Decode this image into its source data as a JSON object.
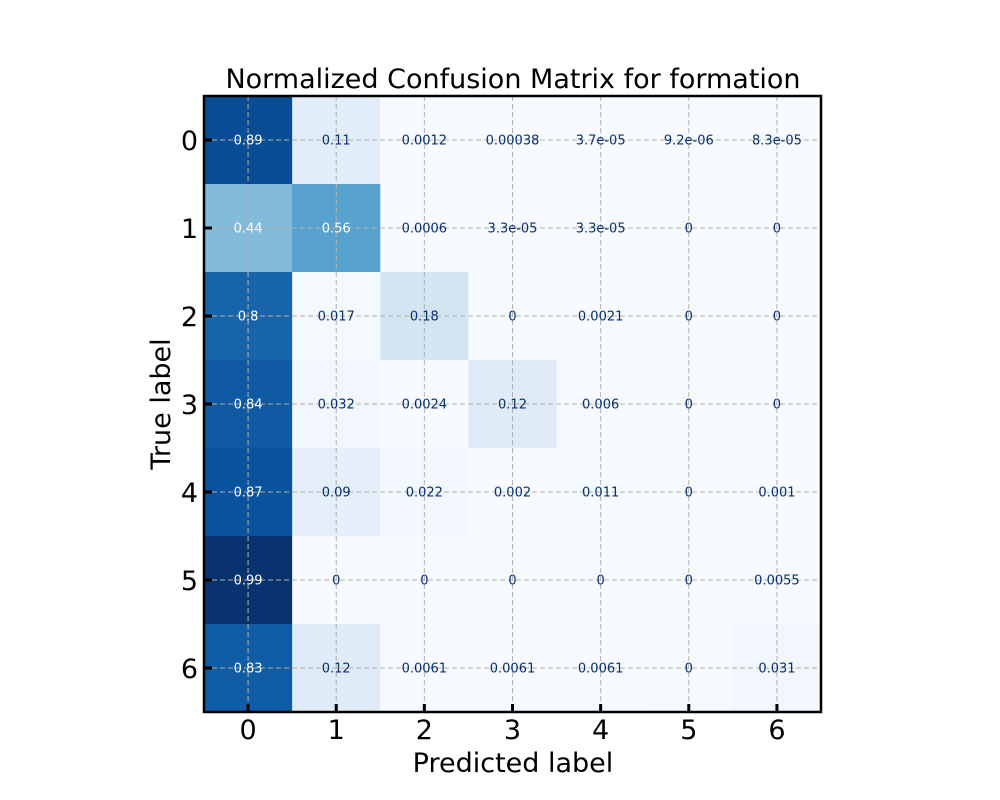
{
  "chart_data": {
    "type": "heatmap",
    "title": "Normalized Confusion Matrix for formation",
    "xlabel": "Predicted label",
    "ylabel": "True label",
    "x_categories": [
      "0",
      "1",
      "2",
      "3",
      "4",
      "5",
      "6"
    ],
    "y_categories": [
      "0",
      "1",
      "2",
      "3",
      "4",
      "5",
      "6"
    ],
    "colormap": "Blues",
    "color_range": [
      0,
      1
    ],
    "grid": true,
    "values": [
      [
        0.89,
        0.11,
        0.0012,
        0.00038,
        3.7e-05,
        9.2e-06,
        8.3e-05
      ],
      [
        0.44,
        0.56,
        0.0006,
        3.3e-05,
        3.3e-05,
        0,
        0
      ],
      [
        0.8,
        0.017,
        0.18,
        0,
        0.0021,
        0,
        0
      ],
      [
        0.84,
        0.032,
        0.0024,
        0.12,
        0.006,
        0,
        0
      ],
      [
        0.87,
        0.09,
        0.022,
        0.002,
        0.011,
        0,
        0.001
      ],
      [
        0.99,
        0,
        0,
        0,
        0,
        0,
        0.0055
      ],
      [
        0.83,
        0.12,
        0.0061,
        0.0061,
        0.0061,
        0,
        0.031
      ]
    ],
    "labels": [
      [
        "0.89",
        "0.11",
        "0.0012",
        "0.00038",
        "3.7e-05",
        "9.2e-06",
        "8.3e-05"
      ],
      [
        "0.44",
        "0.56",
        "0.0006",
        "3.3e-05",
        "3.3e-05",
        "0",
        "0"
      ],
      [
        "0.8",
        "0.017",
        "0.18",
        "0",
        "0.0021",
        "0",
        "0"
      ],
      [
        "0.84",
        "0.032",
        "0.0024",
        "0.12",
        "0.006",
        "0",
        "0"
      ],
      [
        "0.87",
        "0.09",
        "0.022",
        "0.002",
        "0.011",
        "0",
        "0.001"
      ],
      [
        "0.99",
        "0",
        "0",
        "0",
        "0",
        "0",
        "0.0055"
      ],
      [
        "0.83",
        "0.12",
        "0.0061",
        "0.0061",
        "0.0061",
        "0",
        "0.031"
      ]
    ]
  }
}
